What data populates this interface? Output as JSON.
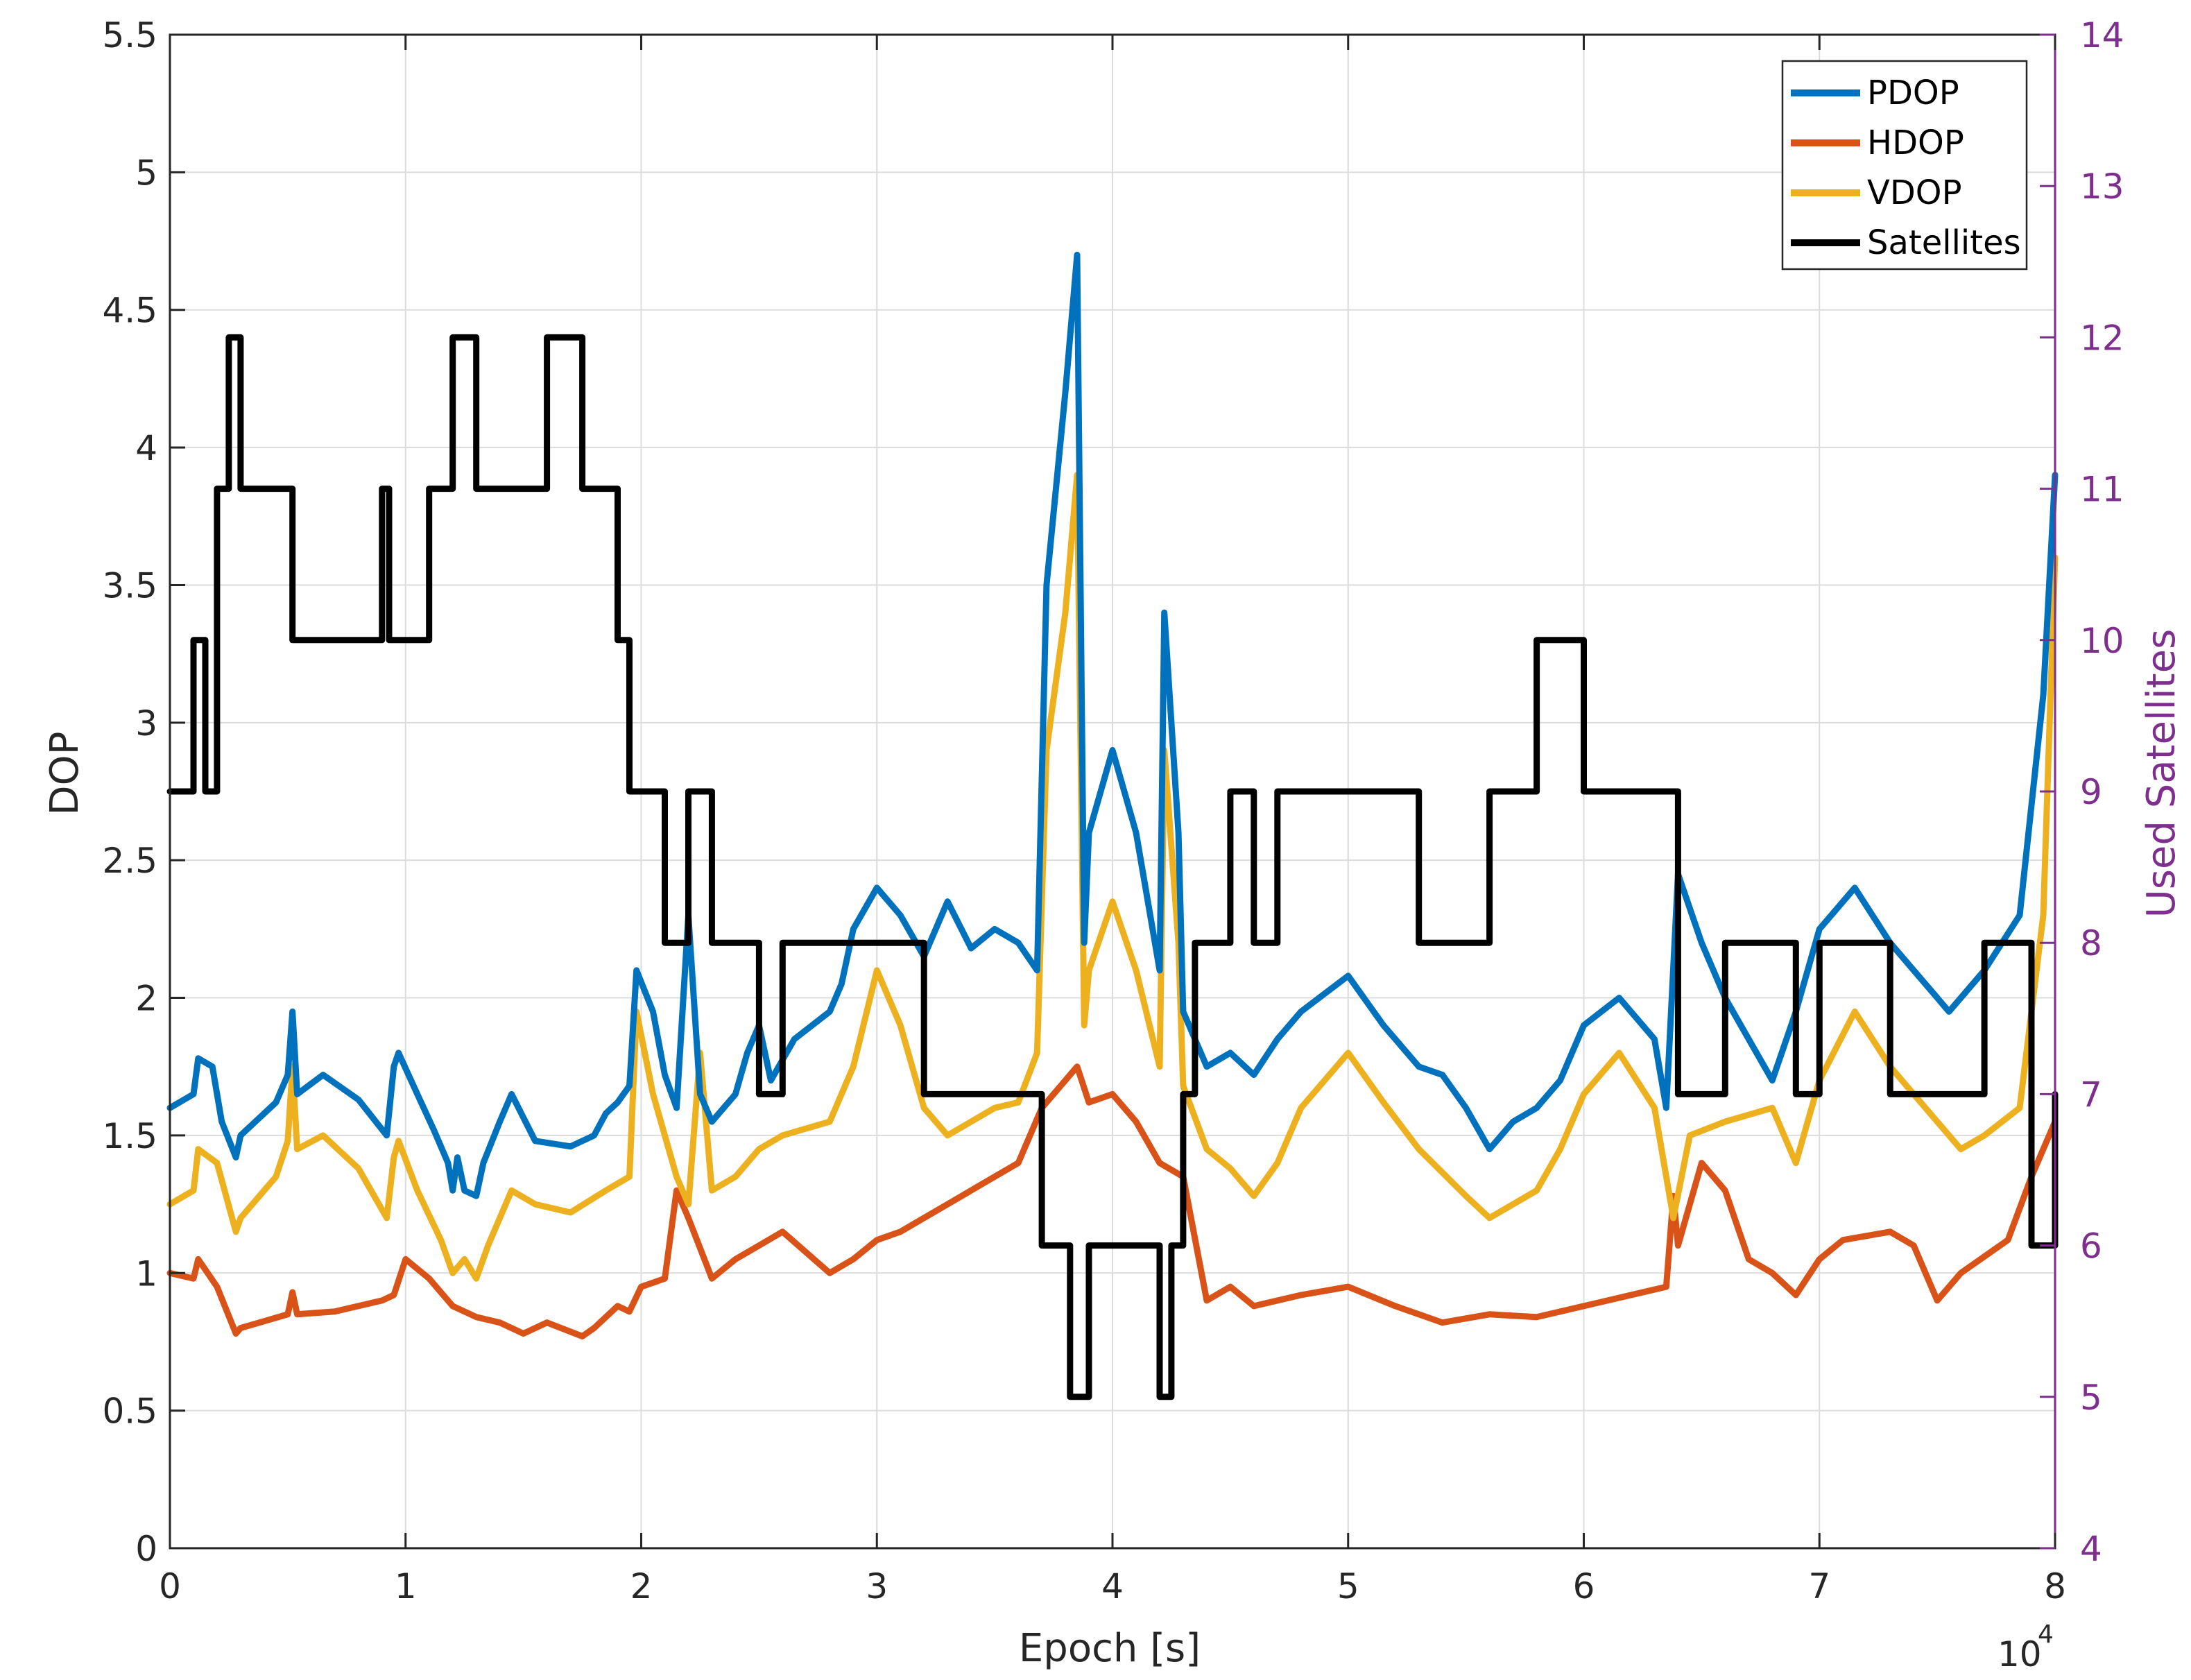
{
  "chart_data": {
    "type": "line",
    "title": "",
    "xlabel": "Epoch [s]",
    "x_multiplier_label": {
      "base": "10",
      "exponent": "4"
    },
    "ylabel_left": "DOP",
    "ylabel_right": "Used Satellites",
    "xlim": [
      0,
      8
    ],
    "ylim_left": [
      0,
      5.5
    ],
    "ylim_right": [
      4,
      14
    ],
    "x_ticks": [
      0,
      1,
      2,
      3,
      4,
      5,
      6,
      7,
      8
    ],
    "x_tick_labels": [
      "0",
      "1",
      "2",
      "3",
      "4",
      "5",
      "6",
      "7",
      "8"
    ],
    "y_left_ticks": [
      0,
      0.5,
      1,
      1.5,
      2,
      2.5,
      3,
      3.5,
      4,
      4.5,
      5,
      5.5
    ],
    "y_left_tick_labels": [
      "0",
      "0.5",
      "1",
      "1.5",
      "2",
      "2.5",
      "3",
      "3.5",
      "4",
      "4.5",
      "5",
      "5.5"
    ],
    "y_right_ticks": [
      4,
      5,
      6,
      7,
      8,
      9,
      10,
      11,
      12,
      13,
      14
    ],
    "y_right_tick_labels": [
      "4",
      "5",
      "6",
      "7",
      "8",
      "9",
      "10",
      "11",
      "12",
      "13",
      "14"
    ],
    "grid": true,
    "legend_position": "top-right",
    "colors": {
      "PDOP": "#0072BD",
      "HDOP": "#D95319",
      "VDOP": "#EDB120",
      "Satellites": "#000000",
      "right_axis": "#7E2F8E"
    },
    "series": [
      {
        "name": "PDOP",
        "axis": "left",
        "x": [
          0,
          0.1,
          0.12,
          0.18,
          0.22,
          0.28,
          0.3,
          0.45,
          0.5,
          0.52,
          0.54,
          0.65,
          0.8,
          0.92,
          0.95,
          0.97,
          1.05,
          1.12,
          1.18,
          1.2,
          1.22,
          1.25,
          1.3,
          1.33,
          1.4,
          1.45,
          1.55,
          1.7,
          1.8,
          1.85,
          1.9,
          1.95,
          1.98,
          2.05,
          2.1,
          2.15,
          2.2,
          2.25,
          2.3,
          2.4,
          2.45,
          2.5,
          2.55,
          2.65,
          2.8,
          2.85,
          2.9,
          3.0,
          3.1,
          3.2,
          3.3,
          3.4,
          3.5,
          3.6,
          3.68,
          3.72,
          3.8,
          3.85,
          3.88,
          3.9,
          4.0,
          4.1,
          4.2,
          4.22,
          4.28,
          4.3,
          4.4,
          4.5,
          4.6,
          4.7,
          4.8,
          5.0,
          5.15,
          5.3,
          5.4,
          5.5,
          5.6,
          5.7,
          5.8,
          5.9,
          6.0,
          6.15,
          6.3,
          6.35,
          6.4,
          6.5,
          6.6,
          6.7,
          6.8,
          6.9,
          7.0,
          7.15,
          7.3,
          7.5,
          7.55,
          7.7,
          7.85,
          7.95,
          8.0
        ],
        "y": [
          1.6,
          1.65,
          1.78,
          1.75,
          1.55,
          1.42,
          1.5,
          1.62,
          1.72,
          1.95,
          1.65,
          1.72,
          1.63,
          1.5,
          1.75,
          1.8,
          1.65,
          1.52,
          1.4,
          1.3,
          1.42,
          1.3,
          1.28,
          1.4,
          1.55,
          1.65,
          1.48,
          1.46,
          1.5,
          1.58,
          1.62,
          1.68,
          2.1,
          1.95,
          1.72,
          1.6,
          2.3,
          1.65,
          1.55,
          1.65,
          1.8,
          1.9,
          1.7,
          1.85,
          1.95,
          2.05,
          2.25,
          2.4,
          2.3,
          2.15,
          2.35,
          2.18,
          2.25,
          2.2,
          2.1,
          3.5,
          4.2,
          4.7,
          2.2,
          2.6,
          2.9,
          2.6,
          2.1,
          3.4,
          2.6,
          1.95,
          1.75,
          1.8,
          1.72,
          1.85,
          1.95,
          2.08,
          1.9,
          1.75,
          1.72,
          1.6,
          1.45,
          1.55,
          1.6,
          1.7,
          1.9,
          2.0,
          1.85,
          1.6,
          2.45,
          2.2,
          2.0,
          1.85,
          1.7,
          1.95,
          2.25,
          2.4,
          2.2,
          2.0,
          1.95,
          2.1,
          2.3,
          3.1,
          3.9
        ]
      },
      {
        "name": "HDOP",
        "axis": "left",
        "x": [
          0,
          0.1,
          0.12,
          0.2,
          0.28,
          0.3,
          0.5,
          0.52,
          0.54,
          0.7,
          0.9,
          0.95,
          1.0,
          1.1,
          1.2,
          1.3,
          1.4,
          1.5,
          1.6,
          1.75,
          1.8,
          1.9,
          1.95,
          2.0,
          2.1,
          2.15,
          2.2,
          2.3,
          2.4,
          2.5,
          2.6,
          2.8,
          2.9,
          3.0,
          3.1,
          3.2,
          3.3,
          3.4,
          3.5,
          3.6,
          3.7,
          3.8,
          3.85,
          3.9,
          4.0,
          4.1,
          4.2,
          4.3,
          4.4,
          4.5,
          4.6,
          4.8,
          5.0,
          5.2,
          5.4,
          5.6,
          5.8,
          6.0,
          6.2,
          6.35,
          6.38,
          6.4,
          6.5,
          6.6,
          6.7,
          6.8,
          6.9,
          7.0,
          7.1,
          7.3,
          7.4,
          7.5,
          7.6,
          7.8,
          7.9,
          8.0
        ],
        "y": [
          1.0,
          0.98,
          1.05,
          0.95,
          0.78,
          0.8,
          0.85,
          0.93,
          0.85,
          0.86,
          0.9,
          0.92,
          1.05,
          0.98,
          0.88,
          0.84,
          0.82,
          0.78,
          0.82,
          0.77,
          0.8,
          0.88,
          0.86,
          0.95,
          0.98,
          1.3,
          1.2,
          0.98,
          1.05,
          1.1,
          1.15,
          1.0,
          1.05,
          1.12,
          1.15,
          1.2,
          1.25,
          1.3,
          1.35,
          1.4,
          1.6,
          1.7,
          1.75,
          1.62,
          1.65,
          1.55,
          1.4,
          1.35,
          0.9,
          0.95,
          0.88,
          0.92,
          0.95,
          0.88,
          0.82,
          0.85,
          0.84,
          0.88,
          0.92,
          0.95,
          1.28,
          1.1,
          1.4,
          1.3,
          1.05,
          1.0,
          0.92,
          1.05,
          1.12,
          1.15,
          1.1,
          0.9,
          1.0,
          1.12,
          1.35,
          1.55
        ]
      },
      {
        "name": "VDOP",
        "axis": "left",
        "x": [
          0,
          0.1,
          0.12,
          0.2,
          0.28,
          0.3,
          0.45,
          0.5,
          0.52,
          0.54,
          0.65,
          0.8,
          0.92,
          0.95,
          0.97,
          1.05,
          1.15,
          1.2,
          1.25,
          1.3,
          1.35,
          1.45,
          1.55,
          1.7,
          1.85,
          1.95,
          1.98,
          2.05,
          2.15,
          2.2,
          2.25,
          2.3,
          2.4,
          2.5,
          2.6,
          2.8,
          2.9,
          3.0,
          3.1,
          3.2,
          3.3,
          3.4,
          3.5,
          3.6,
          3.68,
          3.72,
          3.8,
          3.85,
          3.88,
          3.9,
          4.0,
          4.1,
          4.2,
          4.22,
          4.28,
          4.3,
          4.4,
          4.5,
          4.6,
          4.7,
          4.8,
          5.0,
          5.15,
          5.3,
          5.5,
          5.6,
          5.8,
          5.9,
          6.0,
          6.15,
          6.3,
          6.38,
          6.45,
          6.6,
          6.8,
          6.9,
          7.0,
          7.15,
          7.3,
          7.5,
          7.6,
          7.7,
          7.85,
          7.95,
          8.0
        ],
        "y": [
          1.25,
          1.3,
          1.45,
          1.4,
          1.15,
          1.2,
          1.35,
          1.48,
          1.75,
          1.45,
          1.5,
          1.38,
          1.2,
          1.42,
          1.48,
          1.3,
          1.12,
          1.0,
          1.05,
          0.98,
          1.1,
          1.3,
          1.25,
          1.22,
          1.3,
          1.35,
          1.95,
          1.65,
          1.35,
          1.25,
          1.8,
          1.3,
          1.35,
          1.45,
          1.5,
          1.55,
          1.75,
          2.1,
          1.9,
          1.6,
          1.5,
          1.55,
          1.6,
          1.62,
          1.8,
          2.9,
          3.4,
          3.9,
          1.9,
          2.1,
          2.35,
          2.1,
          1.75,
          2.9,
          2.2,
          1.68,
          1.45,
          1.38,
          1.28,
          1.4,
          1.6,
          1.8,
          1.62,
          1.45,
          1.28,
          1.2,
          1.3,
          1.45,
          1.65,
          1.8,
          1.6,
          1.2,
          1.5,
          1.55,
          1.6,
          1.4,
          1.7,
          1.95,
          1.75,
          1.55,
          1.45,
          1.5,
          1.6,
          2.3,
          3.6
        ]
      },
      {
        "name": "Satellites",
        "axis": "right",
        "step": true,
        "x": [
          0,
          0.1,
          0.15,
          0.2,
          0.25,
          0.3,
          0.5,
          0.52,
          0.9,
          0.93,
          1.0,
          1.1,
          1.2,
          1.3,
          1.45,
          1.6,
          1.75,
          1.78,
          1.9,
          1.95,
          2.0,
          2.1,
          2.2,
          2.3,
          2.4,
          2.5,
          2.6,
          2.8,
          3.0,
          3.2,
          3.35,
          3.5,
          3.7,
          3.82,
          3.9,
          4.2,
          4.25,
          4.3,
          4.35,
          4.5,
          4.6,
          4.7,
          4.9,
          5.1,
          5.3,
          5.6,
          5.8,
          6.0,
          6.3,
          6.4,
          6.6,
          6.8,
          6.9,
          7.0,
          7.3,
          7.5,
          7.7,
          7.9,
          8.0
        ],
        "y": [
          9,
          10,
          9,
          11,
          12,
          11,
          11,
          10,
          11,
          10,
          10,
          11,
          12,
          11,
          11,
          12,
          11,
          11,
          10,
          9,
          9,
          8,
          9,
          8,
          8,
          7,
          8,
          8,
          8,
          7,
          7,
          7,
          6,
          5,
          6,
          5,
          6,
          7,
          8,
          9,
          8,
          9,
          9,
          9,
          8,
          9,
          10,
          9,
          9,
          7,
          8,
          8,
          7,
          8,
          7,
          7,
          8,
          6,
          7
        ]
      }
    ],
    "legend": [
      "PDOP",
      "HDOP",
      "VDOP",
      "Satellites"
    ]
  }
}
